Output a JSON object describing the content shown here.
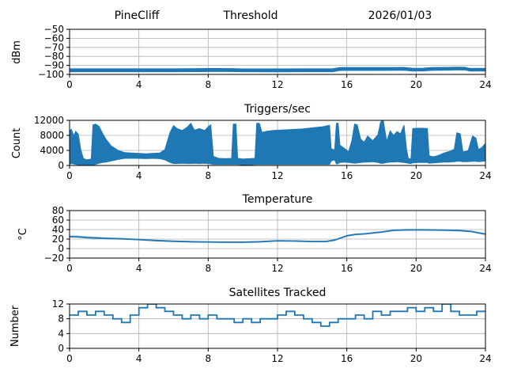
{
  "colors": {
    "series": "#1f77b4",
    "series_light": "#a3c6e8",
    "grid": "#b0b0b0",
    "axes": "#000000",
    "text": "#000000",
    "background": "#ffffff"
  },
  "chart_data": [
    {
      "id": "threshold",
      "type": "area",
      "title_left": "PineCliff",
      "title_center": "Threshold",
      "title_right": "2026/01/03",
      "ylabel": "dBm",
      "xlabel": "",
      "xlim": [
        0,
        24
      ],
      "ylim": [
        -100,
        -50
      ],
      "xticks": [
        0,
        4,
        8,
        12,
        16,
        20,
        24
      ],
      "yticks": [
        -100,
        -90,
        -80,
        -70,
        -60,
        -50
      ],
      "grid": true,
      "legend": "none",
      "series": [
        {
          "name": "rssi-threshold-band",
          "kind": "band",
          "color": "main",
          "points": [
            [
              0,
              -97.0,
              -93.8
            ],
            [
              3,
              -97.0,
              -93.8
            ],
            [
              6,
              -97.0,
              -93.8
            ],
            [
              8,
              -96.8,
              -93.4
            ],
            [
              9.3,
              -96.8,
              -93.5
            ],
            [
              10,
              -97.0,
              -93.9
            ],
            [
              12,
              -97.1,
              -93.9
            ],
            [
              14,
              -97.0,
              -93.8
            ],
            [
              15.2,
              -97.0,
              -93.8
            ],
            [
              15.6,
              -95.6,
              -92.4
            ],
            [
              17,
              -95.6,
              -92.4
            ],
            [
              18.5,
              -95.5,
              -92.3
            ],
            [
              19.3,
              -95.4,
              -92.2
            ],
            [
              19.8,
              -96.2,
              -93.2
            ],
            [
              20.4,
              -96.1,
              -93.1
            ],
            [
              20.9,
              -95.5,
              -92.4
            ],
            [
              22.0,
              -95.3,
              -92.1
            ],
            [
              22.4,
              -95.0,
              -91.8
            ],
            [
              22.8,
              -95.1,
              -92.0
            ],
            [
              23.1,
              -96.3,
              -93.3
            ],
            [
              24,
              -96.3,
              -93.3
            ]
          ]
        }
      ]
    },
    {
      "id": "triggers",
      "type": "area",
      "title": "Triggers/sec",
      "ylabel": "Count",
      "xlabel": "",
      "xlim": [
        0,
        24
      ],
      "ylim": [
        0,
        12000
      ],
      "xticks": [
        0,
        4,
        8,
        12,
        16,
        20,
        24
      ],
      "yticks": [
        0,
        4000,
        8000,
        12000
      ],
      "grid": true,
      "legend": "none",
      "series": [
        {
          "name": "triggers-band",
          "kind": "band",
          "color": "main",
          "points": [
            [
              0.0,
              300,
              9200
            ],
            [
              0.1,
              500,
              9600
            ],
            [
              0.25,
              400,
              7800
            ],
            [
              0.35,
              300,
              9100
            ],
            [
              0.5,
              200,
              8300
            ],
            [
              0.65,
              200,
              4200
            ],
            [
              0.8,
              100,
              1800
            ],
            [
              1.0,
              100,
              1500
            ],
            [
              1.25,
              100,
              1700
            ],
            [
              1.35,
              200,
              10800
            ],
            [
              1.5,
              300,
              11000
            ],
            [
              1.7,
              600,
              10400
            ],
            [
              1.9,
              800,
              8600
            ],
            [
              2.1,
              900,
              7000
            ],
            [
              2.4,
              1200,
              5200
            ],
            [
              2.8,
              1600,
              4000
            ],
            [
              3.2,
              1900,
              3400
            ],
            [
              3.6,
              1900,
              3300
            ],
            [
              4.0,
              1900,
              3200
            ],
            [
              4.4,
              1800,
              3100
            ],
            [
              4.8,
              1900,
              3200
            ],
            [
              5.2,
              1800,
              3300
            ],
            [
              5.5,
              1500,
              4200
            ],
            [
              5.8,
              800,
              8800
            ],
            [
              6.0,
              500,
              10600
            ],
            [
              6.2,
              500,
              9800
            ],
            [
              6.5,
              600,
              9300
            ],
            [
              6.8,
              500,
              10200
            ],
            [
              7.0,
              500,
              11200
            ],
            [
              7.2,
              600,
              9400
            ],
            [
              7.5,
              500,
              9800
            ],
            [
              7.8,
              600,
              9300
            ],
            [
              8.0,
              500,
              10300
            ],
            [
              8.15,
              400,
              10800
            ],
            [
              8.3,
              300,
              2400
            ],
            [
              8.6,
              300,
              1900
            ],
            [
              9.0,
              300,
              1800
            ],
            [
              9.35,
              300,
              1900
            ],
            [
              9.45,
              300,
              11000
            ],
            [
              9.6,
              300,
              11000
            ],
            [
              9.7,
              300,
              1900
            ],
            [
              10.0,
              200,
              1700
            ],
            [
              10.4,
              200,
              1800
            ],
            [
              10.7,
              300,
              1900
            ],
            [
              10.8,
              300,
              11200
            ],
            [
              10.95,
              300,
              11200
            ],
            [
              11.1,
              300,
              8800
            ],
            [
              11.4,
              300,
              9100
            ],
            [
              11.8,
              300,
              9300
            ],
            [
              12.2,
              300,
              9400
            ],
            [
              12.6,
              300,
              9500
            ],
            [
              13.0,
              300,
              9600
            ],
            [
              13.4,
              300,
              9700
            ],
            [
              13.8,
              300,
              9900
            ],
            [
              14.2,
              300,
              10100
            ],
            [
              14.6,
              300,
              10300
            ],
            [
              15.0,
              300,
              10700
            ],
            [
              15.1,
              1200,
              4400
            ],
            [
              15.3,
              1500,
              4200
            ],
            [
              15.4,
              400,
              11200
            ],
            [
              15.5,
              500,
              11200
            ],
            [
              15.6,
              800,
              5400
            ],
            [
              15.9,
              900,
              4400
            ],
            [
              16.1,
              800,
              3600
            ],
            [
              16.3,
              700,
              6800
            ],
            [
              16.45,
              600,
              11000
            ],
            [
              16.6,
              700,
              10800
            ],
            [
              16.8,
              800,
              7000
            ],
            [
              17.0,
              900,
              6200
            ],
            [
              17.2,
              900,
              7800
            ],
            [
              17.5,
              1000,
              6600
            ],
            [
              17.8,
              800,
              8200
            ],
            [
              17.95,
              600,
              11600
            ],
            [
              18.1,
              600,
              12000
            ],
            [
              18.3,
              800,
              6400
            ],
            [
              18.5,
              900,
              9200
            ],
            [
              18.7,
              900,
              8000
            ],
            [
              18.9,
              1000,
              9000
            ],
            [
              19.1,
              900,
              8400
            ],
            [
              19.3,
              800,
              10700
            ],
            [
              19.45,
              700,
              4200
            ],
            [
              19.55,
              600,
              1800
            ],
            [
              19.7,
              500,
              1700
            ],
            [
              19.8,
              700,
              9800
            ],
            [
              20.1,
              800,
              9900
            ],
            [
              20.4,
              800,
              9900
            ],
            [
              20.65,
              800,
              9800
            ],
            [
              20.75,
              600,
              2600
            ],
            [
              21.0,
              700,
              2300
            ],
            [
              21.3,
              800,
              2700
            ],
            [
              21.6,
              900,
              3300
            ],
            [
              21.9,
              900,
              3700
            ],
            [
              22.2,
              1000,
              4300
            ],
            [
              22.35,
              1100,
              8700
            ],
            [
              22.55,
              1100,
              8400
            ],
            [
              22.7,
              1000,
              3600
            ],
            [
              23.0,
              1000,
              3900
            ],
            [
              23.25,
              1100,
              7800
            ],
            [
              23.45,
              1100,
              7300
            ],
            [
              23.6,
              1000,
              4200
            ],
            [
              23.8,
              1100,
              4800
            ],
            [
              24.0,
              1200,
              5900
            ]
          ]
        }
      ]
    },
    {
      "id": "temperature",
      "type": "line",
      "title": "Temperature",
      "ylabel": "°C",
      "xlabel": "",
      "xlim": [
        0,
        24
      ],
      "ylim": [
        -20,
        80
      ],
      "xticks": [
        0,
        4,
        8,
        12,
        16,
        20,
        24
      ],
      "yticks": [
        -20,
        0,
        20,
        40,
        60,
        80
      ],
      "grid": true,
      "legend": "none",
      "series": [
        {
          "name": "temperature-secondary",
          "kind": "line",
          "color": "light",
          "x": [
            0,
            0.5,
            1,
            2,
            3,
            4,
            5,
            6,
            7,
            8,
            9,
            10,
            11,
            12,
            13,
            14,
            14.8,
            15.3,
            16,
            16.5,
            17,
            18,
            18.7,
            19.5,
            20.5,
            21.5,
            22.5,
            23.2,
            24
          ],
          "y": [
            26.5,
            26,
            24.5,
            22.5,
            21,
            18.5,
            16.5,
            15,
            14,
            13.5,
            13,
            13,
            14,
            16,
            15.5,
            14.5,
            14.5,
            17.5,
            26.5,
            29.5,
            30.5,
            34.5,
            38,
            39,
            39,
            38.5,
            37.5,
            35.5,
            30
          ]
        },
        {
          "name": "temperature-primary",
          "kind": "line",
          "color": "main",
          "x": [
            0,
            0.5,
            1,
            2,
            3,
            4,
            5,
            6,
            7,
            8,
            9,
            10,
            11,
            12,
            13,
            14,
            14.8,
            15.3,
            16,
            16.5,
            17,
            18,
            18.7,
            19.5,
            20.5,
            21.5,
            22.5,
            23.2,
            24
          ],
          "y": [
            25,
            24.5,
            23,
            21.5,
            20.5,
            19,
            17,
            15.5,
            14.5,
            14,
            13.5,
            13.5,
            14.5,
            16.5,
            16,
            15,
            15,
            18,
            27,
            30,
            31,
            35,
            38.5,
            39.5,
            39.5,
            39,
            38,
            36,
            30.5
          ]
        }
      ]
    },
    {
      "id": "satellites",
      "type": "step",
      "title": "Satellites Tracked",
      "ylabel": "Number",
      "xlabel": "",
      "xlim": [
        0,
        24
      ],
      "ylim": [
        0,
        12
      ],
      "xticks": [
        0,
        4,
        8,
        12,
        16,
        20,
        24
      ],
      "yticks": [
        0,
        4,
        8,
        12
      ],
      "grid": true,
      "legend": "none",
      "series": [
        {
          "name": "satellites-count",
          "kind": "step",
          "color": "main",
          "x_start": 0,
          "x_step": 0.5,
          "values": [
            9,
            10,
            9,
            10,
            9,
            8,
            7,
            9,
            11,
            12,
            11,
            10,
            9,
            8,
            9,
            8,
            9,
            8,
            8,
            7,
            8,
            7,
            8,
            8,
            9,
            10,
            9,
            8,
            7,
            6,
            7,
            8,
            8,
            9,
            8,
            10,
            9,
            10,
            10,
            11,
            10,
            11,
            10,
            12,
            10,
            9,
            9,
            10,
            10
          ]
        }
      ]
    }
  ]
}
